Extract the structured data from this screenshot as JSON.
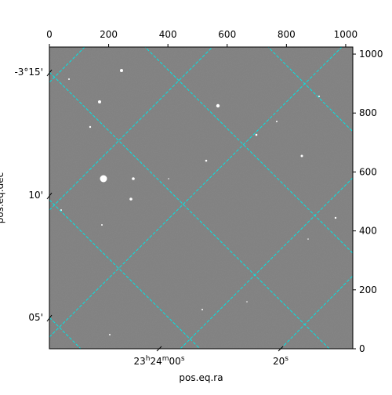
{
  "chart_data": {
    "type": "image",
    "xlabel": "pos.eq.ra",
    "ylabel": "pos.eq.dec",
    "xlim": [
      0,
      1024
    ],
    "ylim": [
      0,
      1024
    ],
    "xticks": [
      0,
      200,
      400,
      600,
      800,
      1000
    ],
    "yticks": [
      0,
      200,
      400,
      600,
      800,
      1000
    ],
    "ra_tick_labels": [
      "23h24m00s",
      "20s"
    ],
    "dec_tick_labels": [
      "-3°15'",
      "10'",
      "05'"
    ],
    "grid_color": "#00e5e5"
  }
}
